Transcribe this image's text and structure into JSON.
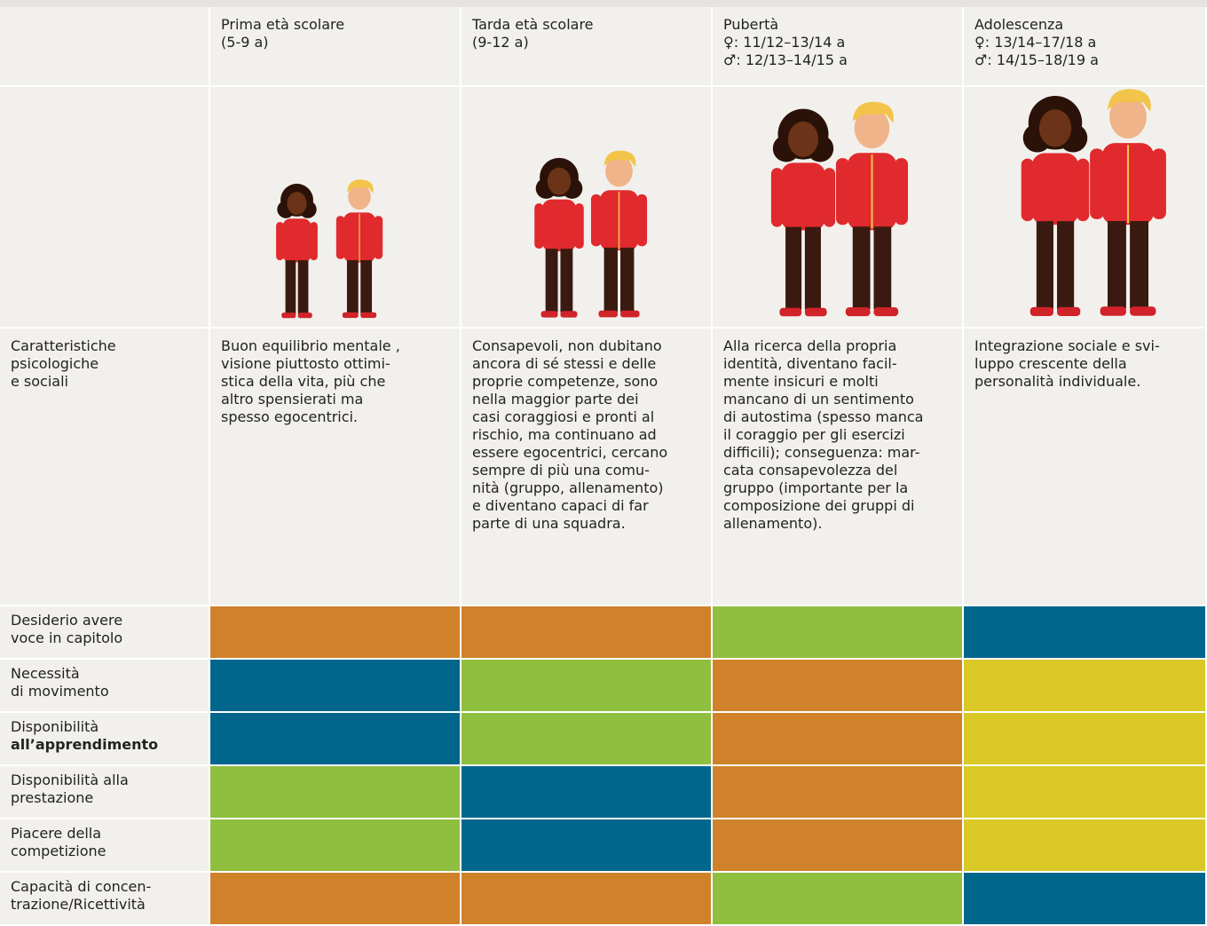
{
  "header": {
    "columns": [
      {
        "lines": [
          "Prima età scolare",
          "(5-9 a)"
        ]
      },
      {
        "lines": [
          "Tarda età scolare",
          "(9-12 a)"
        ]
      },
      {
        "lines": [
          "Pubertà",
          "♀: 11/12–13/14 a",
          "♂: 12/13–14/15 a"
        ]
      },
      {
        "lines": [
          "Adolescenza",
          "♀: 13/14–17/18 a",
          "♂: 14/15–18/19 a"
        ]
      }
    ]
  },
  "psych": {
    "label": {
      "lines": [
        "Caratteristiche",
        "psicologiche",
        "e sociali"
      ]
    },
    "cells": [
      {
        "lines": [
          "Buon equilibrio mentale ,",
          "visione piuttosto ottimi-",
          "stica della vita, più che",
          "altro spensierati ma",
          "spesso egocentrici."
        ]
      },
      {
        "lines": [
          "Consapevoli, non dubitano",
          "ancora di sé stessi e delle",
          "proprie competenze, sono",
          "nella maggior parte dei",
          "casi coraggiosi e pronti al",
          "rischio, ma continuano ad",
          "essere egocentrici, cercano",
          "sempre di più una comu-",
          "nità (gruppo, allenamento)",
          "e diventano capaci di far",
          "parte di una squadra."
        ]
      },
      {
        "lines": [
          "Alla ricerca della propria",
          "identità, diventano facil-",
          "mente insicuri e molti",
          "mancano di un sentimento",
          "di autostima (spesso manca",
          "il coraggio per gli esercizi",
          "difficili); conseguenza: mar-",
          "cata consapevolezza del",
          "gruppo (importante per la",
          "composizione dei gruppi di",
          "allenamento)."
        ]
      },
      {
        "lines": [
          "Integrazione sociale e svi-",
          "luppo crescente della",
          "personalità individuale."
        ]
      }
    ]
  },
  "ratings": {
    "rows": [
      {
        "label": [
          "Desiderio avere",
          "voce in capitolo"
        ],
        "colors": [
          "#d0822b",
          "#d0822b",
          "#8fbf3f",
          "#00668c"
        ]
      },
      {
        "label": [
          "Necessità",
          "di movimento"
        ],
        "colors": [
          "#00668c",
          "#8fbf3f",
          "#d0822b",
          "#d9c826"
        ]
      },
      {
        "label": [
          "Disponibilità",
          "all’apprendimento"
        ],
        "colors": [
          "#00668c",
          "#8fbf3f",
          "#d0822b",
          "#d9c826"
        ]
      },
      {
        "label": [
          "Disponibilità alla",
          "prestazione"
        ],
        "colors": [
          "#8fbf3f",
          "#00668c",
          "#d0822b",
          "#d9c826"
        ]
      },
      {
        "label": [
          "Piacere della",
          "competizione"
        ],
        "colors": [
          "#8fbf3f",
          "#00668c",
          "#d0822b",
          "#d9c826"
        ]
      },
      {
        "label": [
          "Capacità di concen-",
          "trazione/Ricettività"
        ],
        "colors": [
          "#d0822b",
          "#d0822b",
          "#8fbf3f",
          "#00668c"
        ]
      }
    ]
  }
}
